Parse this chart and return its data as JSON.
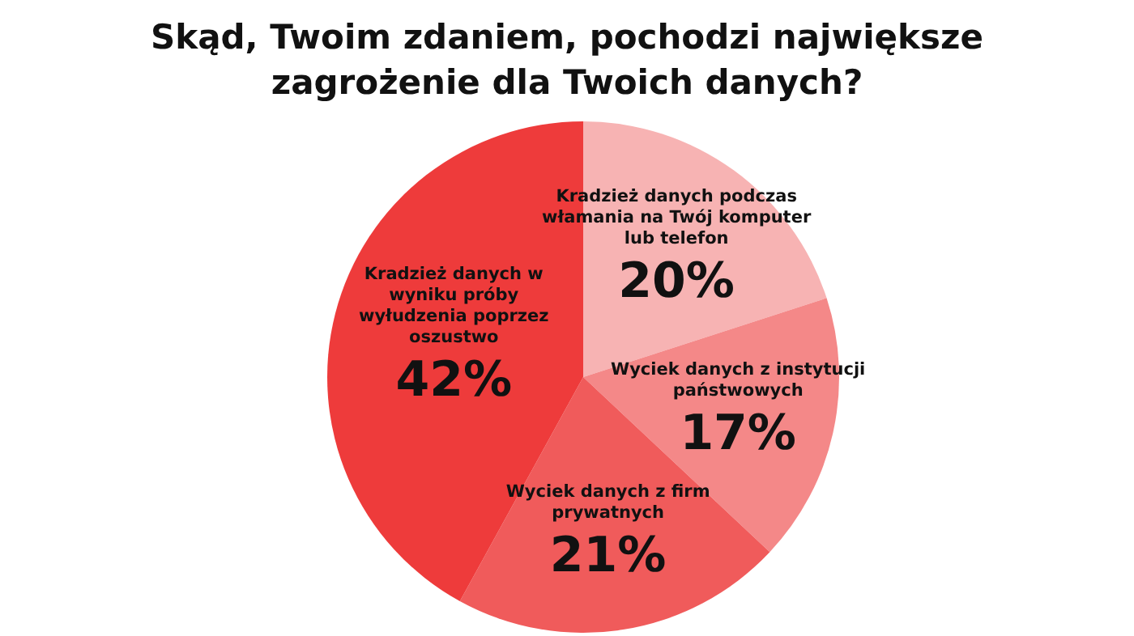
{
  "chart_data": {
    "type": "pie",
    "title": "Skąd, Twoim zdaniem, pochodzi największe zagrożenie dla Twoich danych?",
    "categories": [
      "Kradzież danych podczas włamania na Twój komputer lub telefon",
      "Wyciek danych z instytucji państwowych",
      "Wyciek danych z firm prywatnych",
      "Kradzież danych w wyniku próby wyłudzenia poprzez oszustwo"
    ],
    "values": [
      20,
      17,
      21,
      42
    ],
    "value_labels": [
      "20%",
      "17%",
      "21%",
      "42%"
    ],
    "colors": [
      "#f7b3b3",
      "#f48888",
      "#f05b5b",
      "#ee3b3b"
    ]
  }
}
